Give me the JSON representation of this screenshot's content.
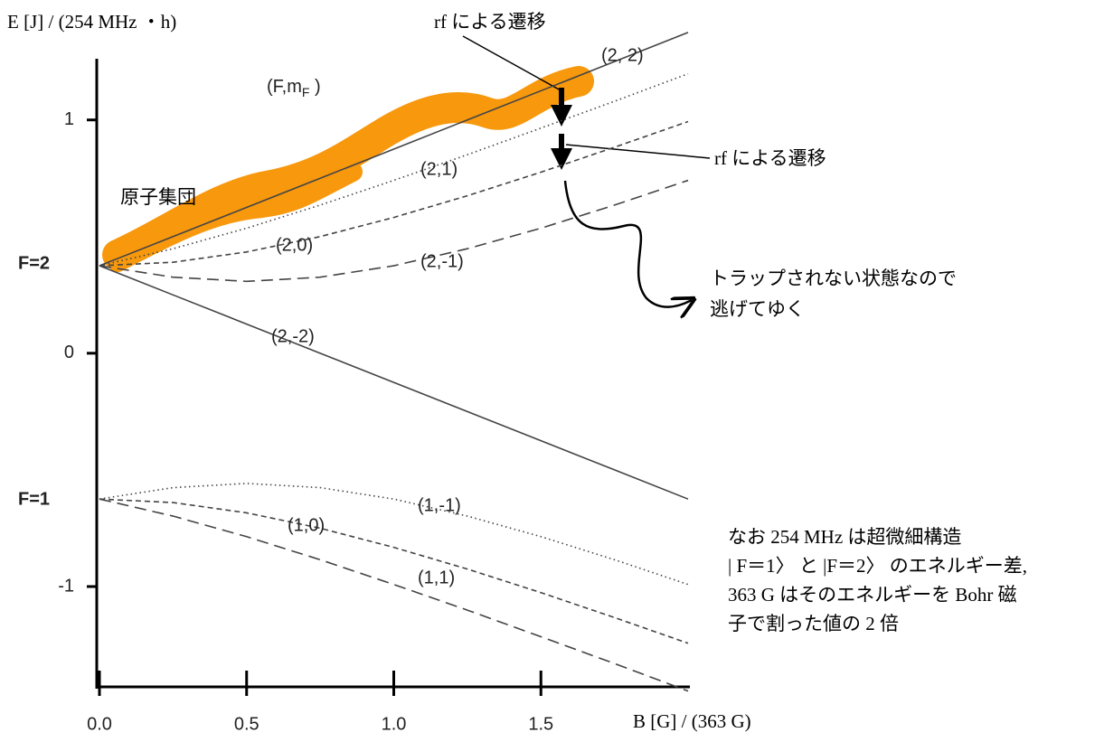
{
  "chart_data": {
    "type": "line",
    "title_annotation": {
      "main": "(F,m",
      "sub": "F",
      "end": " )"
    },
    "y_label": "E [J] / (254 MHz ・h)",
    "x_label": "B [G] / (363 G)",
    "x": [
      0,
      0.25,
      0.5,
      0.75,
      1,
      1.25,
      1.5,
      1.75,
      2
    ],
    "xlim": [
      0,
      2
    ],
    "ylim": [
      -1.43,
      1.27
    ],
    "xticks": [
      {
        "value": 0,
        "label": "0.0"
      },
      0.5,
      {
        "value": 1,
        "label": "1.0"
      },
      1.5
    ],
    "yticks": [
      1,
      0,
      -1
    ],
    "series": [
      {
        "name": "(2, 2)",
        "color": "#444444",
        "line_style": "solid",
        "values": [
          0.375,
          0.5,
          0.625,
          0.75,
          0.875,
          1.0,
          1.125,
          1.25,
          1.375
        ]
      },
      {
        "name": "(2,1)",
        "color": "#444444",
        "line_style": "dotted",
        "values": [
          0.375,
          0.448,
          0.536,
          0.635,
          0.741,
          0.851,
          0.965,
          1.08,
          1.198
        ]
      },
      {
        "name": "(2,0)",
        "color": "#444444",
        "line_style": "dashed",
        "values": [
          0.375,
          0.39,
          0.434,
          0.5,
          0.582,
          0.675,
          0.776,
          0.883,
          0.993
        ]
      },
      {
        "name": "(2,-1)",
        "color": "#444444",
        "line_style": "long-dashed",
        "values": [
          0.375,
          0.326,
          0.308,
          0.326,
          0.375,
          0.448,
          0.536,
          0.635,
          0.741
        ]
      },
      {
        "name": "(2,-2)",
        "color": "#444444",
        "line_style": "solid",
        "values": [
          0.375,
          0.25,
          0.125,
          0,
          -0.125,
          -0.25,
          -0.375,
          -0.5,
          -0.625
        ]
      },
      {
        "name": "(1,-1)",
        "color": "#444444",
        "line_style": "dotted",
        "values": [
          -0.625,
          -0.576,
          -0.558,
          -0.576,
          -0.625,
          -0.698,
          -0.786,
          -0.885,
          -0.991
        ]
      },
      {
        "name": "(1,0)",
        "color": "#444444",
        "line_style": "dashed",
        "values": [
          -0.625,
          -0.64,
          -0.684,
          -0.75,
          -0.832,
          -0.925,
          -1.026,
          -1.133,
          -1.243
        ]
      },
      {
        "name": "(1,1)",
        "color": "#444444",
        "line_style": "long-dashed",
        "values": [
          -0.625,
          -0.698,
          -0.786,
          -0.885,
          -0.991,
          -1.101,
          -1.215,
          -1.33,
          -1.448
        ]
      }
    ],
    "level_labels": [
      "F=2",
      "F=1"
    ],
    "annotations": {
      "atoms": "原子集団",
      "rf_top": "rf による遷移",
      "rf_right": "rf による遷移",
      "escape": [
        "トラップされない状態なので",
        "逃げてゆく"
      ],
      "note": [
        "なお 254 MHz は超微細構造",
        "| F＝1〉 と |F＝2〉 のエネルギー差,",
        "363 G はそのエネルギーを Bohr 磁",
        "子で割った値の 2 倍"
      ]
    }
  }
}
